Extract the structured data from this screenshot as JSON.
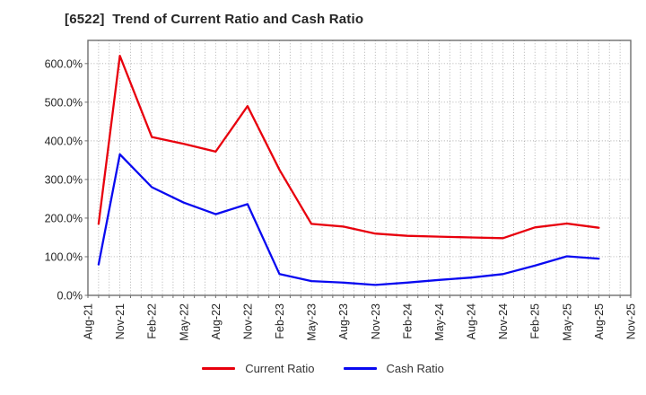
{
  "title": "[6522]  Trend of Current Ratio and Cash Ratio",
  "chart_data": {
    "type": "line",
    "title": "[6522]  Trend of Current Ratio and Cash Ratio",
    "x_tick_labels": [
      "Aug-21",
      "Nov-21",
      "Feb-22",
      "May-22",
      "Aug-22",
      "Nov-22",
      "Feb-23",
      "May-23",
      "Aug-23",
      "Nov-23",
      "Feb-24",
      "May-24",
      "Aug-24",
      "Nov-24",
      "Feb-25",
      "May-25",
      "Aug-25",
      "Nov-25"
    ],
    "y_tick_labels": [
      "0.0%",
      "100.0%",
      "200.0%",
      "300.0%",
      "400.0%",
      "500.0%",
      "600.0%"
    ],
    "y_ticks": [
      0,
      100,
      200,
      300,
      400,
      500,
      600
    ],
    "ylim": [
      0,
      660
    ],
    "x_axis_span_months": 51,
    "grid": true,
    "legend_position": "bottom-center",
    "x_months_after_first_tick": [
      1,
      3,
      6,
      9,
      12,
      15,
      18,
      21,
      24,
      27,
      30,
      33,
      36,
      39,
      42,
      45,
      48
    ],
    "series": [
      {
        "name": "Current Ratio",
        "color": "#e8000d",
        "values": [
          185,
          620,
          410,
          392,
          372,
          490,
          325,
          185,
          178,
          160,
          154,
          152,
          150,
          148,
          176,
          186,
          175
        ]
      },
      {
        "name": "Cash Ratio",
        "color": "#0909f0",
        "values": [
          80,
          365,
          280,
          240,
          210,
          236,
          55,
          37,
          33,
          27,
          33,
          40,
          46,
          55,
          77,
          101,
          95
        ]
      }
    ],
    "colors": {
      "grid": "#ababab",
      "spine": "#6e6e6e",
      "tick_text": "#262626"
    }
  }
}
